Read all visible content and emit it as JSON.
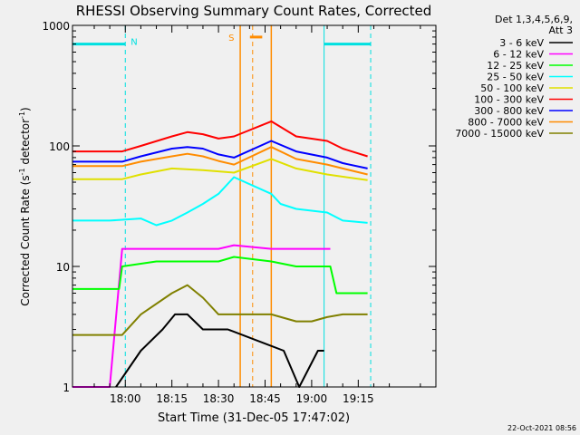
{
  "chart_data": {
    "type": "line",
    "title": "RHESSI Observing Summary Count Rates, Corrected",
    "xlabel": "Start Time (31-Dec-05 17:47:02)",
    "ylabel_main": "Corrected Count Rate (s",
    "ylabel_sup1": "-1",
    "ylabel_mid": " detector",
    "ylabel_sup2": "-1",
    "ylabel_end": ")",
    "yscale": "log",
    "xlim_minutes": [
      -17,
      100
    ],
    "ylim": [
      1,
      1000
    ],
    "x_ticks": [
      {
        "label": "18:00",
        "minutes": 0
      },
      {
        "label": "18:15",
        "minutes": 15
      },
      {
        "label": "18:30",
        "minutes": 30
      },
      {
        "label": "18:45",
        "minutes": 45
      },
      {
        "label": "19:00",
        "minutes": 60
      },
      {
        "label": "19:15",
        "minutes": 75
      }
    ],
    "y_ticks": [
      {
        "label": "1",
        "value": 1
      },
      {
        "label": "10",
        "value": 10
      },
      {
        "label": "100",
        "value": 100
      },
      {
        "label": "1000",
        "value": 1000
      }
    ],
    "legend_header": [
      "Det 1,3,4,5,6,9,",
      "Att 3"
    ],
    "timestamp": "22-Oct-2021 08:56",
    "markers": {
      "night_label": "N",
      "saa_label": "S",
      "night_intervals": [
        [
          -17,
          0
        ],
        [
          64,
          79
        ]
      ],
      "night_level": 700,
      "saa_interval": [
        37,
        47
      ],
      "saa_bar": [
        41,
        47
      ],
      "saa_level": 800
    },
    "series": [
      {
        "name": "3 - 6 keV",
        "color": "#000000",
        "values": [
          {
            "x": -3,
            "y": 1
          },
          {
            "x": 5,
            "y": 2
          },
          {
            "x": 12,
            "y": 3
          },
          {
            "x": 16,
            "y": 4
          },
          {
            "x": 20,
            "y": 4
          },
          {
            "x": 25,
            "y": 3
          },
          {
            "x": 33,
            "y": 3
          },
          {
            "x": 51,
            "y": 2
          },
          {
            "x": 56,
            "y": 1
          },
          {
            "x": 62,
            "y": 2
          },
          {
            "x": 64,
            "y": 2
          }
        ]
      },
      {
        "name": "6 - 12 keV",
        "color": "#ff00ff",
        "values": [
          {
            "x": -17,
            "y": 1
          },
          {
            "x": -5,
            "y": 1
          },
          {
            "x": -1,
            "y": 14
          },
          {
            "x": 10,
            "y": 14
          },
          {
            "x": 20,
            "y": 14
          },
          {
            "x": 30,
            "y": 14
          },
          {
            "x": 35,
            "y": 15
          },
          {
            "x": 47,
            "y": 14
          },
          {
            "x": 55,
            "y": 14
          },
          {
            "x": 66,
            "y": 14
          }
        ]
      },
      {
        "name": "12 - 25 keV",
        "color": "#00ff00",
        "values": [
          {
            "x": -17,
            "y": 6.5
          },
          {
            "x": -2,
            "y": 6.5
          },
          {
            "x": -1,
            "y": 10
          },
          {
            "x": 10,
            "y": 11
          },
          {
            "x": 20,
            "y": 11
          },
          {
            "x": 30,
            "y": 11
          },
          {
            "x": 35,
            "y": 12
          },
          {
            "x": 47,
            "y": 11
          },
          {
            "x": 55,
            "y": 10
          },
          {
            "x": 66,
            "y": 10
          },
          {
            "x": 68,
            "y": 6
          },
          {
            "x": 78,
            "y": 6
          }
        ]
      },
      {
        "name": "25 - 50 keV",
        "color": "#00ffff",
        "values": [
          {
            "x": -17,
            "y": 24
          },
          {
            "x": -5,
            "y": 24
          },
          {
            "x": 5,
            "y": 25
          },
          {
            "x": 10,
            "y": 22
          },
          {
            "x": 15,
            "y": 24
          },
          {
            "x": 20,
            "y": 28
          },
          {
            "x": 25,
            "y": 33
          },
          {
            "x": 30,
            "y": 40
          },
          {
            "x": 35,
            "y": 55
          },
          {
            "x": 47,
            "y": 40
          },
          {
            "x": 50,
            "y": 33
          },
          {
            "x": 55,
            "y": 30
          },
          {
            "x": 65,
            "y": 28
          },
          {
            "x": 70,
            "y": 24
          },
          {
            "x": 78,
            "y": 23
          }
        ]
      },
      {
        "name": "50 - 100 keV",
        "color": "#e0e000",
        "values": [
          {
            "x": -17,
            "y": 53
          },
          {
            "x": -1,
            "y": 53
          },
          {
            "x": 5,
            "y": 58
          },
          {
            "x": 15,
            "y": 65
          },
          {
            "x": 25,
            "y": 63
          },
          {
            "x": 35,
            "y": 60
          },
          {
            "x": 47,
            "y": 78
          },
          {
            "x": 55,
            "y": 65
          },
          {
            "x": 65,
            "y": 58
          },
          {
            "x": 78,
            "y": 52
          }
        ]
      },
      {
        "name": "100 - 300 keV",
        "color": "#ff0000",
        "values": [
          {
            "x": -17,
            "y": 90
          },
          {
            "x": -1,
            "y": 90
          },
          {
            "x": 5,
            "y": 100
          },
          {
            "x": 15,
            "y": 120
          },
          {
            "x": 20,
            "y": 130
          },
          {
            "x": 25,
            "y": 125
          },
          {
            "x": 30,
            "y": 115
          },
          {
            "x": 35,
            "y": 120
          },
          {
            "x": 47,
            "y": 160
          },
          {
            "x": 55,
            "y": 120
          },
          {
            "x": 65,
            "y": 110
          },
          {
            "x": 70,
            "y": 95
          },
          {
            "x": 78,
            "y": 82
          }
        ]
      },
      {
        "name": "300 - 800 keV",
        "color": "#0000ff",
        "values": [
          {
            "x": -17,
            "y": 74
          },
          {
            "x": -1,
            "y": 74
          },
          {
            "x": 5,
            "y": 82
          },
          {
            "x": 15,
            "y": 95
          },
          {
            "x": 20,
            "y": 98
          },
          {
            "x": 25,
            "y": 95
          },
          {
            "x": 30,
            "y": 85
          },
          {
            "x": 35,
            "y": 80
          },
          {
            "x": 47,
            "y": 110
          },
          {
            "x": 55,
            "y": 90
          },
          {
            "x": 65,
            "y": 80
          },
          {
            "x": 70,
            "y": 72
          },
          {
            "x": 78,
            "y": 65
          }
        ]
      },
      {
        "name": "800 - 7000 keV",
        "color": "#ff8c00",
        "values": [
          {
            "x": -17,
            "y": 68
          },
          {
            "x": -1,
            "y": 68
          },
          {
            "x": 5,
            "y": 74
          },
          {
            "x": 15,
            "y": 82
          },
          {
            "x": 20,
            "y": 86
          },
          {
            "x": 25,
            "y": 82
          },
          {
            "x": 30,
            "y": 75
          },
          {
            "x": 35,
            "y": 70
          },
          {
            "x": 47,
            "y": 98
          },
          {
            "x": 55,
            "y": 78
          },
          {
            "x": 65,
            "y": 70
          },
          {
            "x": 70,
            "y": 65
          },
          {
            "x": 78,
            "y": 58
          }
        ]
      },
      {
        "name": "7000 - 15000 keV",
        "color": "#808000",
        "values": [
          {
            "x": -17,
            "y": 2.7
          },
          {
            "x": -1,
            "y": 2.7
          },
          {
            "x": 5,
            "y": 4
          },
          {
            "x": 15,
            "y": 6
          },
          {
            "x": 20,
            "y": 7
          },
          {
            "x": 25,
            "y": 5.5
          },
          {
            "x": 30,
            "y": 4
          },
          {
            "x": 35,
            "y": 4
          },
          {
            "x": 47,
            "y": 4
          },
          {
            "x": 55,
            "y": 3.5
          },
          {
            "x": 60,
            "y": 3.5
          },
          {
            "x": 65,
            "y": 3.8
          },
          {
            "x": 70,
            "y": 4
          },
          {
            "x": 78,
            "y": 4
          }
        ]
      }
    ]
  }
}
